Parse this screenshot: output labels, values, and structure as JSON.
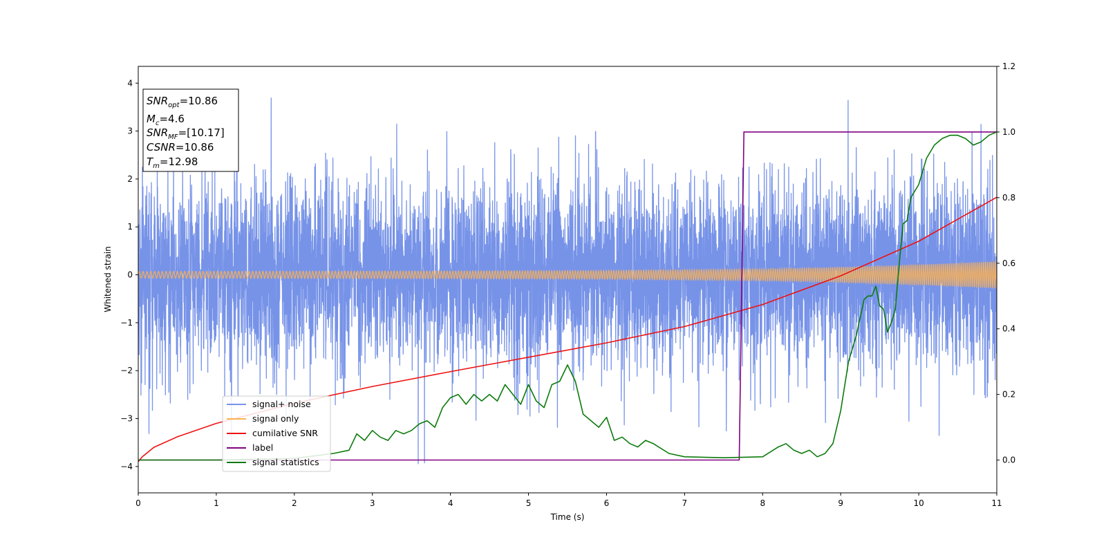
{
  "colors": {
    "noise": "#7793e8",
    "signal": "#ffb14f",
    "csnr": "#ee1111",
    "label": "#800080",
    "stats": "#0b7a0b"
  },
  "info_box": {
    "snr_opt_main": "SNR",
    "snr_opt_sub": "opt",
    "snr_opt_value": "=10.86",
    "mc_main": "M",
    "mc_sub": "c",
    "mc_value": "=4.6",
    "snr_mf_main": "SNR",
    "snr_mf_sub": "MF",
    "snr_mf_value": "=[10.17]",
    "csnr_main": "CSNR",
    "csnr_value": "=10.86",
    "tm_main": "T",
    "tm_sub": "m",
    "tm_value": "=12.98"
  },
  "chart_data": {
    "type": "line",
    "title": "",
    "xlabel": "Time (s)",
    "ylabel": "Whitened strain",
    "xlim": [
      0,
      11
    ],
    "ylim": [
      -4.55,
      4.35
    ],
    "y2lim": [
      -0.1,
      1.2
    ],
    "x_ticks": [
      0,
      1,
      2,
      3,
      4,
      5,
      6,
      7,
      8,
      9,
      10,
      11
    ],
    "x_tick_labels": [
      "0",
      "1",
      "2",
      "3",
      "4",
      "5",
      "6",
      "7",
      "8",
      "9",
      "10",
      "11"
    ],
    "y_ticks": [
      4,
      3,
      2,
      1,
      0,
      -1,
      -2,
      -3,
      -4
    ],
    "y_tick_labels": [
      "4",
      "3",
      "2",
      "1",
      "0",
      "−1",
      "−2",
      "−3",
      "−4"
    ],
    "y2_ticks": [
      1.2,
      1.0,
      0.8,
      0.6,
      0.4,
      0.2,
      0.0
    ],
    "y2_tick_labels": [
      "1.2",
      "1.0",
      "0.8",
      "0.6",
      "0.4",
      "0.2",
      "0.0"
    ],
    "legend_position": "lower-left",
    "legend": [
      "signal+ noise",
      "signal only",
      "cumilative SNR",
      "label",
      "signal statistics"
    ],
    "series": [
      {
        "name": "signal+ noise",
        "axis": "left",
        "description_values": "dense whitened noise, roughly ±2 typical with spikes to about ±3.9 across the full 0–11 s span"
      },
      {
        "name": "signal only",
        "axis": "left",
        "envelope_x": [
          0,
          2,
          4,
          6,
          8,
          9,
          10,
          11
        ],
        "envelope_amp": [
          0.07,
          0.075,
          0.08,
          0.09,
          0.12,
          0.16,
          0.21,
          0.28
        ]
      },
      {
        "name": "cumilative SNR",
        "axis": "left",
        "x": [
          0,
          0.05,
          0.2,
          0.5,
          1,
          2,
          3,
          4,
          5,
          6,
          7,
          8,
          9,
          10,
          11
        ],
        "y": [
          -3.9,
          -3.8,
          -3.6,
          -3.38,
          -3.1,
          -2.68,
          -2.33,
          -2.02,
          -1.72,
          -1.42,
          -1.08,
          -0.62,
          -0.02,
          0.7,
          1.62
        ]
      },
      {
        "name": "label",
        "axis": "right",
        "x": [
          0,
          7.7,
          7.76,
          11
        ],
        "y": [
          0,
          0,
          1,
          1
        ]
      },
      {
        "name": "signal statistics",
        "axis": "right",
        "x": [
          0,
          1,
          2,
          2.5,
          2.7,
          2.8,
          2.9,
          3.0,
          3.1,
          3.2,
          3.3,
          3.4,
          3.5,
          3.6,
          3.7,
          3.8,
          3.9,
          4.0,
          4.1,
          4.2,
          4.3,
          4.4,
          4.5,
          4.6,
          4.7,
          4.8,
          4.9,
          5.0,
          5.1,
          5.2,
          5.3,
          5.4,
          5.5,
          5.6,
          5.7,
          5.8,
          5.9,
          6.0,
          6.1,
          6.2,
          6.3,
          6.4,
          6.5,
          6.6,
          6.8,
          7.0,
          7.5,
          8.0,
          8.2,
          8.3,
          8.4,
          8.5,
          8.6,
          8.7,
          8.8,
          8.9,
          9.0,
          9.1,
          9.2,
          9.3,
          9.35,
          9.4,
          9.45,
          9.5,
          9.55,
          9.6,
          9.65,
          9.7,
          9.75,
          9.8,
          9.85,
          9.9,
          10.0,
          10.1,
          10.2,
          10.3,
          10.4,
          10.5,
          10.6,
          10.7,
          10.8,
          10.9,
          11.0
        ],
        "y": [
          0.0,
          0.0,
          0.005,
          0.02,
          0.03,
          0.08,
          0.06,
          0.09,
          0.07,
          0.06,
          0.09,
          0.08,
          0.09,
          0.11,
          0.12,
          0.1,
          0.16,
          0.19,
          0.2,
          0.17,
          0.2,
          0.18,
          0.2,
          0.18,
          0.23,
          0.2,
          0.17,
          0.23,
          0.18,
          0.16,
          0.23,
          0.24,
          0.29,
          0.24,
          0.14,
          0.12,
          0.1,
          0.13,
          0.06,
          0.07,
          0.05,
          0.04,
          0.06,
          0.05,
          0.02,
          0.01,
          0.007,
          0.01,
          0.04,
          0.05,
          0.03,
          0.02,
          0.03,
          0.01,
          0.02,
          0.05,
          0.15,
          0.3,
          0.38,
          0.49,
          0.5,
          0.5,
          0.53,
          0.47,
          0.46,
          0.39,
          0.42,
          0.46,
          0.6,
          0.72,
          0.73,
          0.8,
          0.84,
          0.92,
          0.96,
          0.98,
          0.99,
          0.99,
          0.98,
          0.96,
          0.97,
          0.99,
          1.0
        ]
      }
    ]
  }
}
